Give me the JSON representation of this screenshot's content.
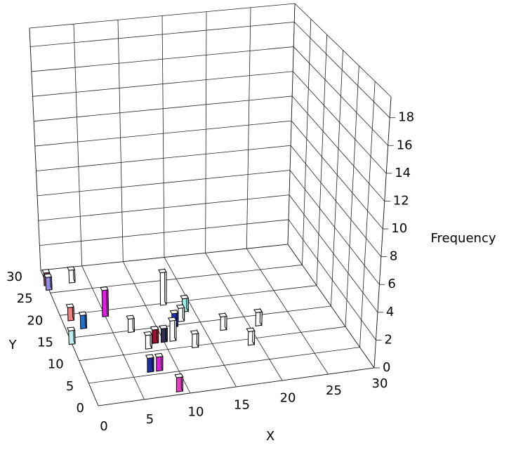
{
  "chart_data": {
    "type": "bar3d",
    "xlabel": "X",
    "ylabel": "Y",
    "zlabel": "Frequency",
    "x": [
      9,
      8,
      7,
      19,
      13,
      21,
      17,
      8,
      10,
      11,
      9,
      12,
      13,
      14,
      7,
      12,
      5,
      2,
      1,
      0,
      3,
      0,
      0
    ],
    "y": [
      1,
      6,
      6,
      9,
      10,
      13,
      13,
      11,
      12,
      12,
      12,
      15,
      16,
      18,
      15,
      20,
      19,
      17,
      19,
      14,
      27,
      27,
      26
    ],
    "values": [
      1,
      1,
      1,
      1,
      1,
      1,
      1,
      1,
      1,
      1.5,
      1,
      1,
      1,
      1,
      1,
      2.5,
      2,
      1,
      1,
      1,
      1,
      1,
      1
    ],
    "colors": [
      "#e040c0",
      "#e020e0",
      "#2030a0",
      "#ffffff",
      "#ffffff",
      "#ffffff",
      "#ffffff",
      "#ffffff",
      "#303050",
      "#ffffff",
      "#a01030",
      "#2030c0",
      "#ffffff",
      "#a0f0f0",
      "#ffffff",
      "#ffffff",
      "#e020e0",
      "#2070d0",
      "#f08080",
      "#c0f0f0",
      "#ffffff",
      "#a04070",
      "#9090e0"
    ],
    "xlim": [
      0,
      30
    ],
    "ylim": [
      0,
      30
    ],
    "zlim": [
      0,
      19.5
    ],
    "xticks": [
      0,
      5,
      10,
      15,
      20,
      25,
      30
    ],
    "yticks": [
      0,
      5,
      10,
      15,
      20,
      25,
      30
    ],
    "zticks": [
      0,
      2,
      4,
      6,
      8,
      10,
      12,
      14,
      16,
      18
    ]
  }
}
